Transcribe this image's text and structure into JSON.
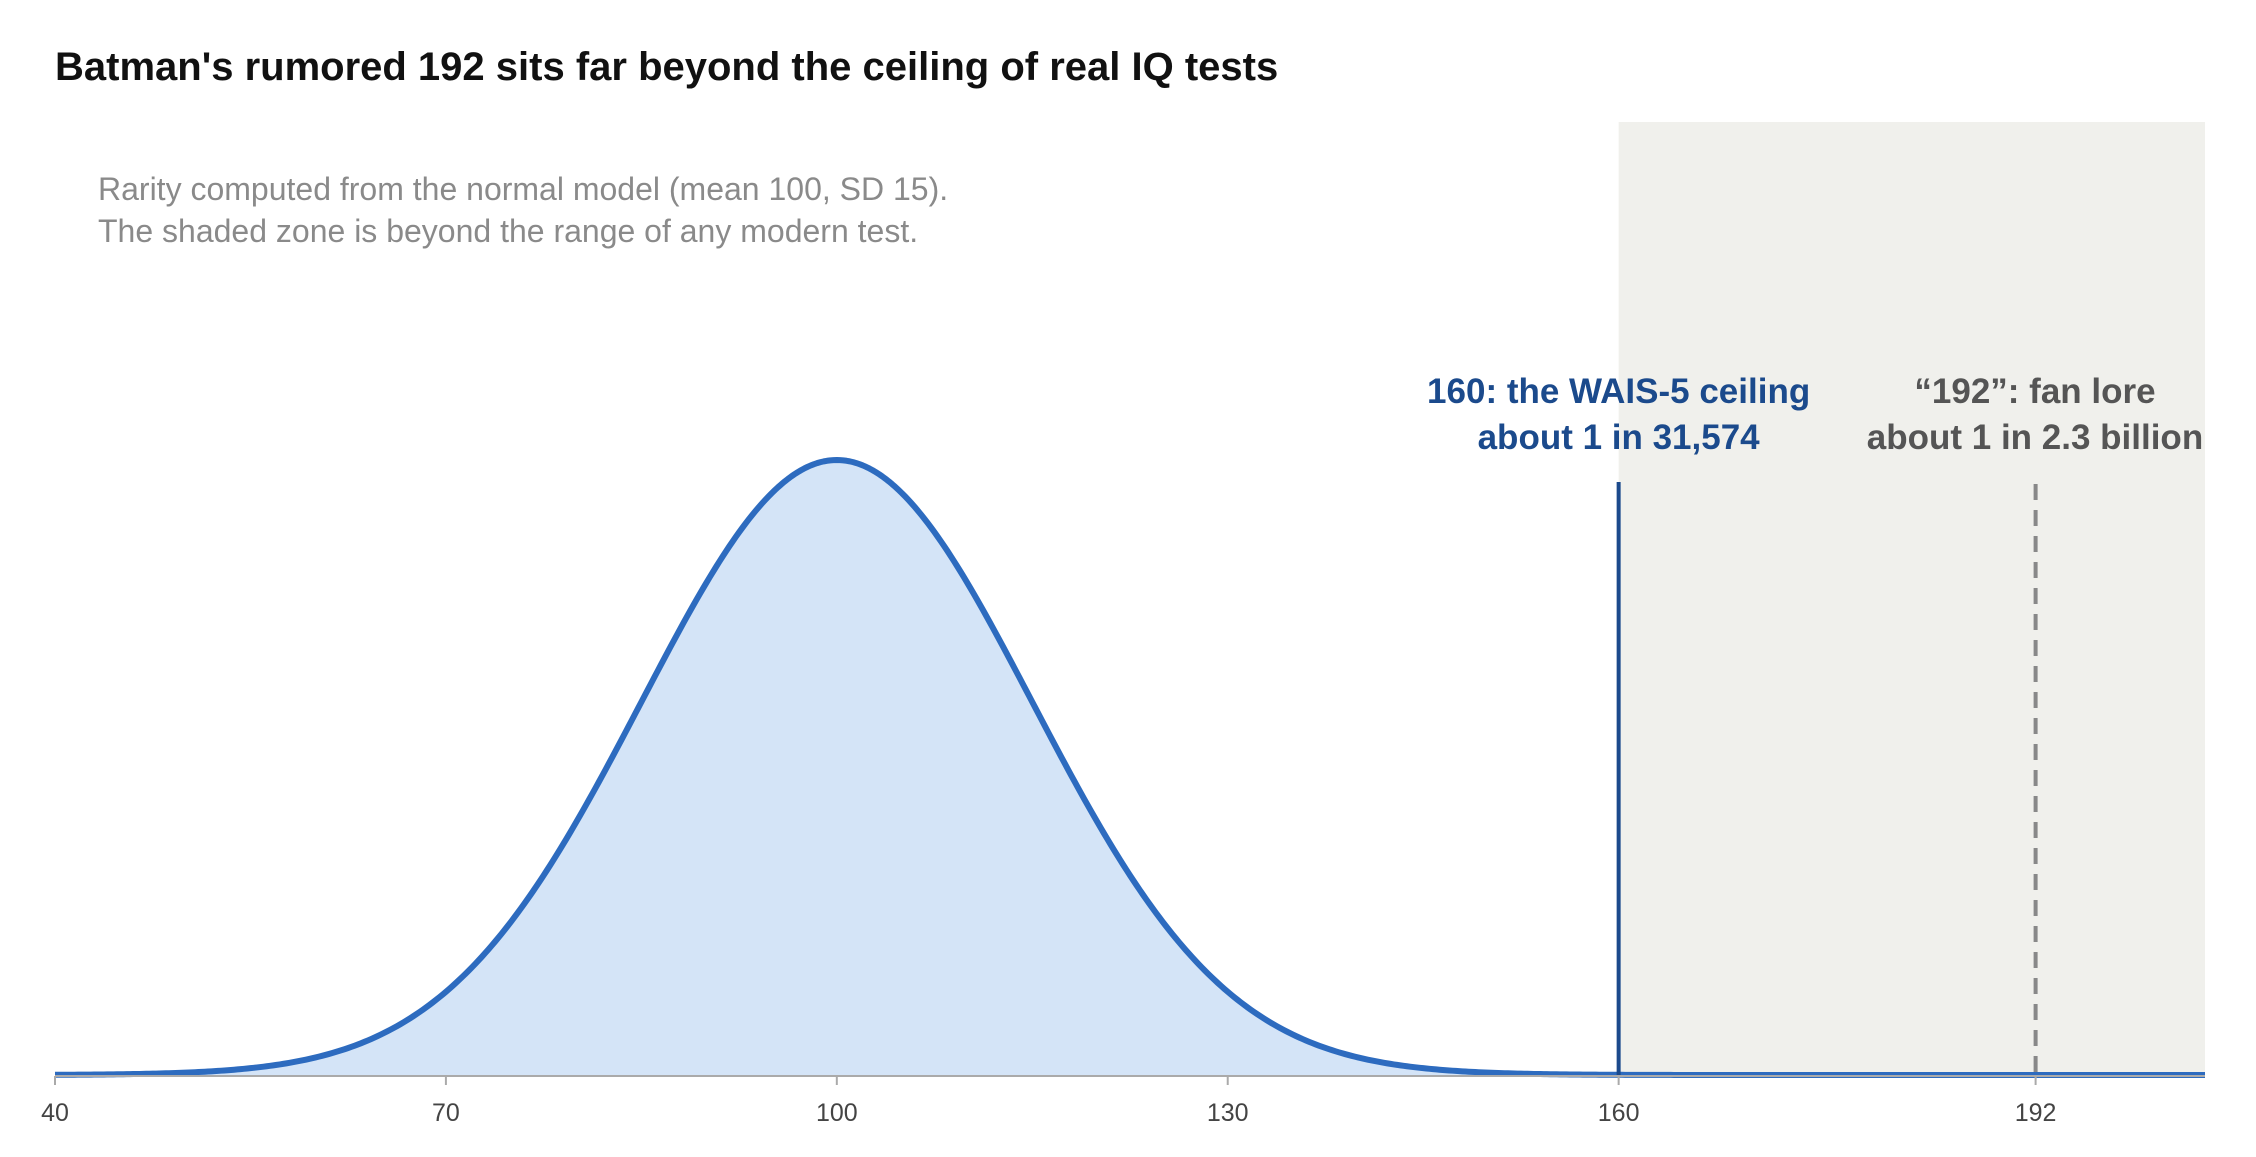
{
  "chart_data": {
    "type": "area",
    "title": "Batman's rumored 192 sits far beyond the ceiling of real IQ tests",
    "subtitle": [
      "Rarity computed from the normal model (mean 100, SD 15).",
      "The shaded zone is beyond the range of any modern test."
    ],
    "xlabel": "",
    "ylabel": "",
    "distribution": {
      "kind": "normal",
      "mean": 100,
      "sd": 15
    },
    "xlim": [
      40,
      205
    ],
    "x_ticks": [
      40,
      70,
      100,
      130,
      160,
      192
    ],
    "x_tick_labels": [
      "40",
      "70",
      "100",
      "130",
      "160",
      "192"
    ],
    "grid": false,
    "legend": "none",
    "shaded_region": {
      "from": 160,
      "to": 205
    },
    "annotations": [
      {
        "x": 160,
        "style": "solid",
        "lines": [
          "160: the WAIS-5 ceiling",
          "about 1 in 31,574"
        ]
      },
      {
        "x": 192,
        "style": "dashed",
        "lines": [
          "“192”: fan lore",
          "about 1 in 2.3 billion"
        ]
      }
    ],
    "colors": {
      "curve": "#2d6bbf",
      "fill": "#d4e4f7",
      "ceiling": "#1b4a8c",
      "lore": "#888888",
      "lore_text": "#555555",
      "shade": "#f0f0ec",
      "subtitle": "#8a8a8a",
      "axis": "#aaaaaa"
    }
  }
}
